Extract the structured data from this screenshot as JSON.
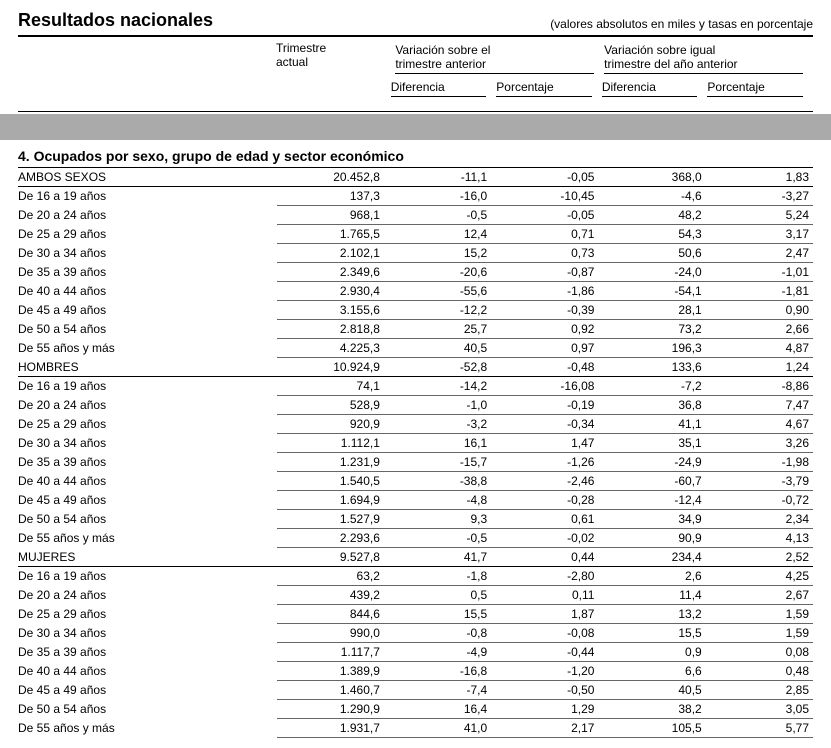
{
  "header": {
    "title": "Resultados nacionales",
    "subtitle": "(valores absolutos en miles y tasas en porcentaje",
    "col_trimestre_l1": "Trimestre",
    "col_trimestre_l2": "actual",
    "col_var1_l1": "Variación sobre el",
    "col_var1_l2": "trimestre anterior",
    "col_var2_l1": "Variación sobre igual",
    "col_var2_l2": "trimestre del año anterior",
    "sub_dif": "Diferencia",
    "sub_pct": "Porcentaje"
  },
  "section_title": "4. Ocupados por sexo, grupo de edad y sector económico",
  "rows": [
    {
      "label": "AMBOS SEXOS",
      "v": [
        "20.452,8",
        "-11,1",
        "-0,05",
        "368,0",
        "1,83"
      ],
      "heading": true
    },
    {
      "label": "De 16 a 19 años",
      "v": [
        "137,3",
        "-16,0",
        "-10,45",
        "-4,6",
        "-3,27"
      ]
    },
    {
      "label": "De 20 a 24 años",
      "v": [
        "968,1",
        "-0,5",
        "-0,05",
        "48,2",
        "5,24"
      ]
    },
    {
      "label": "De 25 a 29 años",
      "v": [
        "1.765,5",
        "12,4",
        "0,71",
        "54,3",
        "3,17"
      ]
    },
    {
      "label": "De 30 a 34 años",
      "v": [
        "2.102,1",
        "15,2",
        "0,73",
        "50,6",
        "2,47"
      ]
    },
    {
      "label": "De 35 a 39 años",
      "v": [
        "2.349,6",
        "-20,6",
        "-0,87",
        "-24,0",
        "-1,01"
      ]
    },
    {
      "label": "De 40 a 44 años",
      "v": [
        "2.930,4",
        "-55,6",
        "-1,86",
        "-54,1",
        "-1,81"
      ]
    },
    {
      "label": "De 45 a 49 años",
      "v": [
        "3.155,6",
        "-12,2",
        "-0,39",
        "28,1",
        "0,90"
      ]
    },
    {
      "label": "De 50 a 54 años",
      "v": [
        "2.818,8",
        "25,7",
        "0,92",
        "73,2",
        "2,66"
      ]
    },
    {
      "label": "De 55 años y más",
      "v": [
        "4.225,3",
        "40,5",
        "0,97",
        "196,3",
        "4,87"
      ]
    },
    {
      "label": "HOMBRES",
      "v": [
        "10.924,9",
        "-52,8",
        "-0,48",
        "133,6",
        "1,24"
      ],
      "heading": true
    },
    {
      "label": "De 16 a 19 años",
      "v": [
        "74,1",
        "-14,2",
        "-16,08",
        "-7,2",
        "-8,86"
      ]
    },
    {
      "label": "De 20 a 24 años",
      "v": [
        "528,9",
        "-1,0",
        "-0,19",
        "36,8",
        "7,47"
      ]
    },
    {
      "label": "De 25 a 29 años",
      "v": [
        "920,9",
        "-3,2",
        "-0,34",
        "41,1",
        "4,67"
      ]
    },
    {
      "label": "De 30 a 34 años",
      "v": [
        "1.112,1",
        "16,1",
        "1,47",
        "35,1",
        "3,26"
      ]
    },
    {
      "label": "De 35 a 39 años",
      "v": [
        "1.231,9",
        "-15,7",
        "-1,26",
        "-24,9",
        "-1,98"
      ]
    },
    {
      "label": "De 40 a 44 años",
      "v": [
        "1.540,5",
        "-38,8",
        "-2,46",
        "-60,7",
        "-3,79"
      ]
    },
    {
      "label": "De 45 a 49 años",
      "v": [
        "1.694,9",
        "-4,8",
        "-0,28",
        "-12,4",
        "-0,72"
      ]
    },
    {
      "label": "De 50 a 54 años",
      "v": [
        "1.527,9",
        "9,3",
        "0,61",
        "34,9",
        "2,34"
      ]
    },
    {
      "label": "De 55 años y más",
      "v": [
        "2.293,6",
        "-0,5",
        "-0,02",
        "90,9",
        "4,13"
      ]
    },
    {
      "label": "MUJERES",
      "v": [
        "9.527,8",
        "41,7",
        "0,44",
        "234,4",
        "2,52"
      ],
      "heading": true
    },
    {
      "label": "De 16 a 19 años",
      "v": [
        "63,2",
        "-1,8",
        "-2,80",
        "2,6",
        "4,25"
      ]
    },
    {
      "label": "De 20 a 24 años",
      "v": [
        "439,2",
        "0,5",
        "0,11",
        "11,4",
        "2,67"
      ]
    },
    {
      "label": "De 25 a 29 años",
      "v": [
        "844,6",
        "15,5",
        "1,87",
        "13,2",
        "1,59"
      ]
    },
    {
      "label": "De 30 a 34 años",
      "v": [
        "990,0",
        "-0,8",
        "-0,08",
        "15,5",
        "1,59"
      ]
    },
    {
      "label": "De 35 a 39 años",
      "v": [
        "1.117,7",
        "-4,9",
        "-0,44",
        "0,9",
        "0,08"
      ]
    },
    {
      "label": "De 40 a 44 años",
      "v": [
        "1.389,9",
        "-16,8",
        "-1,20",
        "6,6",
        "0,48"
      ]
    },
    {
      "label": "De 45 a 49 años",
      "v": [
        "1.460,7",
        "-7,4",
        "-0,50",
        "40,5",
        "2,85"
      ]
    },
    {
      "label": "De 50 a 54 años",
      "v": [
        "1.290,9",
        "16,4",
        "1,29",
        "38,2",
        "3,05"
      ]
    },
    {
      "label": "De 55 años y más",
      "v": [
        "1.931,7",
        "41,0",
        "2,17",
        "105,5",
        "5,77"
      ]
    }
  ]
}
